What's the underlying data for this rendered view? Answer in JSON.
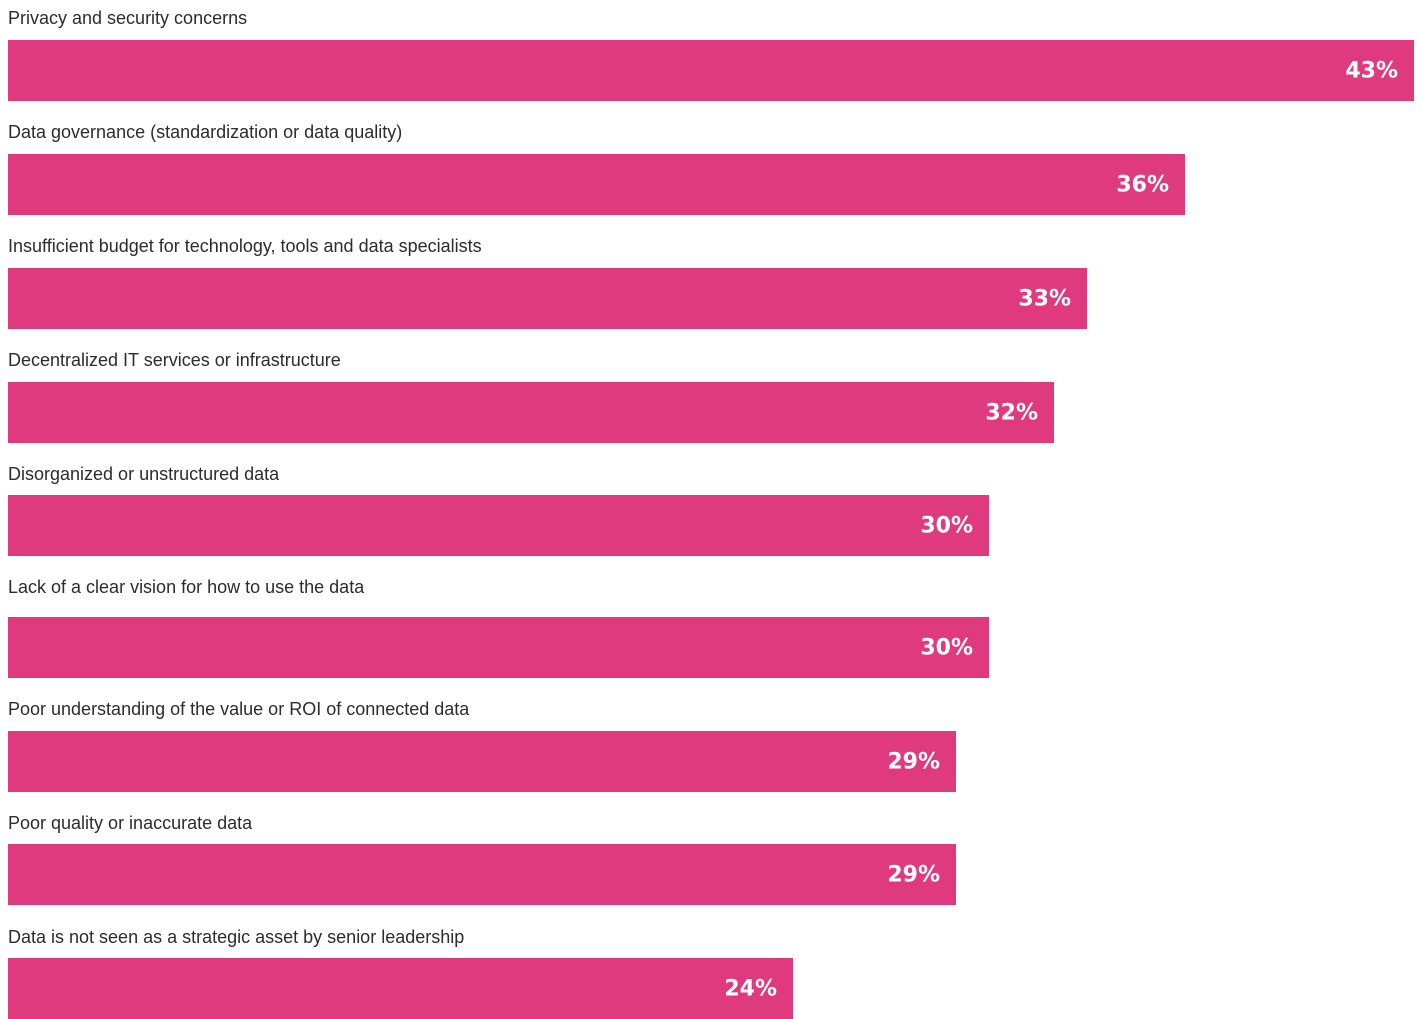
{
  "chart_data": {
    "type": "bar",
    "orientation": "horizontal",
    "categories": [
      "Privacy and security concerns",
      "Data governance (standardization or data quality)",
      "Insufficient budget for technology, tools and data specialists",
      "Decentralized IT services or infrastructure",
      "Disorganized or unstructured data",
      "Lack of a clear vision for how to use the data",
      "Poor understanding of the value or ROI of connected data",
      "Poor quality or inaccurate data",
      "Data is not seen as a strategic asset by senior leadership"
    ],
    "values": [
      43,
      36,
      33,
      32,
      30,
      30,
      29,
      29,
      24
    ],
    "value_labels": [
      "43%",
      "36%",
      "33%",
      "32%",
      "30%",
      "30%",
      "29%",
      "29%",
      "24%"
    ],
    "unit": "%",
    "bar_color": "#e03a7e",
    "value_label_color": "#ffffff",
    "grid": false,
    "legend": "none"
  }
}
